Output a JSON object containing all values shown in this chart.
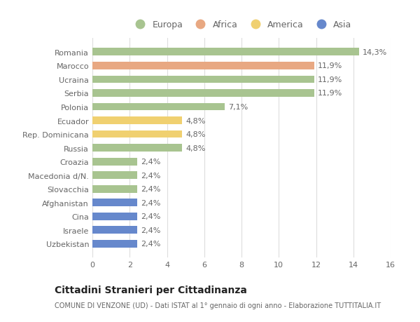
{
  "countries": [
    "Romania",
    "Marocco",
    "Ucraina",
    "Serbia",
    "Polonia",
    "Ecuador",
    "Rep. Dominicana",
    "Russia",
    "Croazia",
    "Macedonia d/N.",
    "Slovacchia",
    "Afghanistan",
    "Cina",
    "Israele",
    "Uzbekistan"
  ],
  "values": [
    14.3,
    11.9,
    11.9,
    11.9,
    7.1,
    4.8,
    4.8,
    4.8,
    2.4,
    2.4,
    2.4,
    2.4,
    2.4,
    2.4,
    2.4
  ],
  "labels": [
    "14,3%",
    "11,9%",
    "11,9%",
    "11,9%",
    "7,1%",
    "4,8%",
    "4,8%",
    "4,8%",
    "2,4%",
    "2,4%",
    "2,4%",
    "2,4%",
    "2,4%",
    "2,4%",
    "2,4%"
  ],
  "continents": [
    "Europa",
    "Africa",
    "Europa",
    "Europa",
    "Europa",
    "America",
    "America",
    "Europa",
    "Europa",
    "Europa",
    "Europa",
    "Asia",
    "Asia",
    "Asia",
    "Asia"
  ],
  "continent_colors": {
    "Europa": "#a8c490",
    "Africa": "#e8a882",
    "America": "#f0d070",
    "Asia": "#6688cc"
  },
  "legend_order": [
    "Europa",
    "Africa",
    "America",
    "Asia"
  ],
  "title": "Cittadini Stranieri per Cittadinanza",
  "subtitle": "COMUNE DI VENZONE (UD) - Dati ISTAT al 1° gennaio di ogni anno - Elaborazione TUTTITALIA.IT",
  "xlim": [
    0,
    16
  ],
  "xticks": [
    0,
    2,
    4,
    6,
    8,
    10,
    12,
    14,
    16
  ],
  "background_color": "#ffffff",
  "bar_height": 0.55,
  "label_fontsize": 8,
  "tick_fontsize": 8,
  "title_fontsize": 10,
  "subtitle_fontsize": 7,
  "legend_fontsize": 9
}
